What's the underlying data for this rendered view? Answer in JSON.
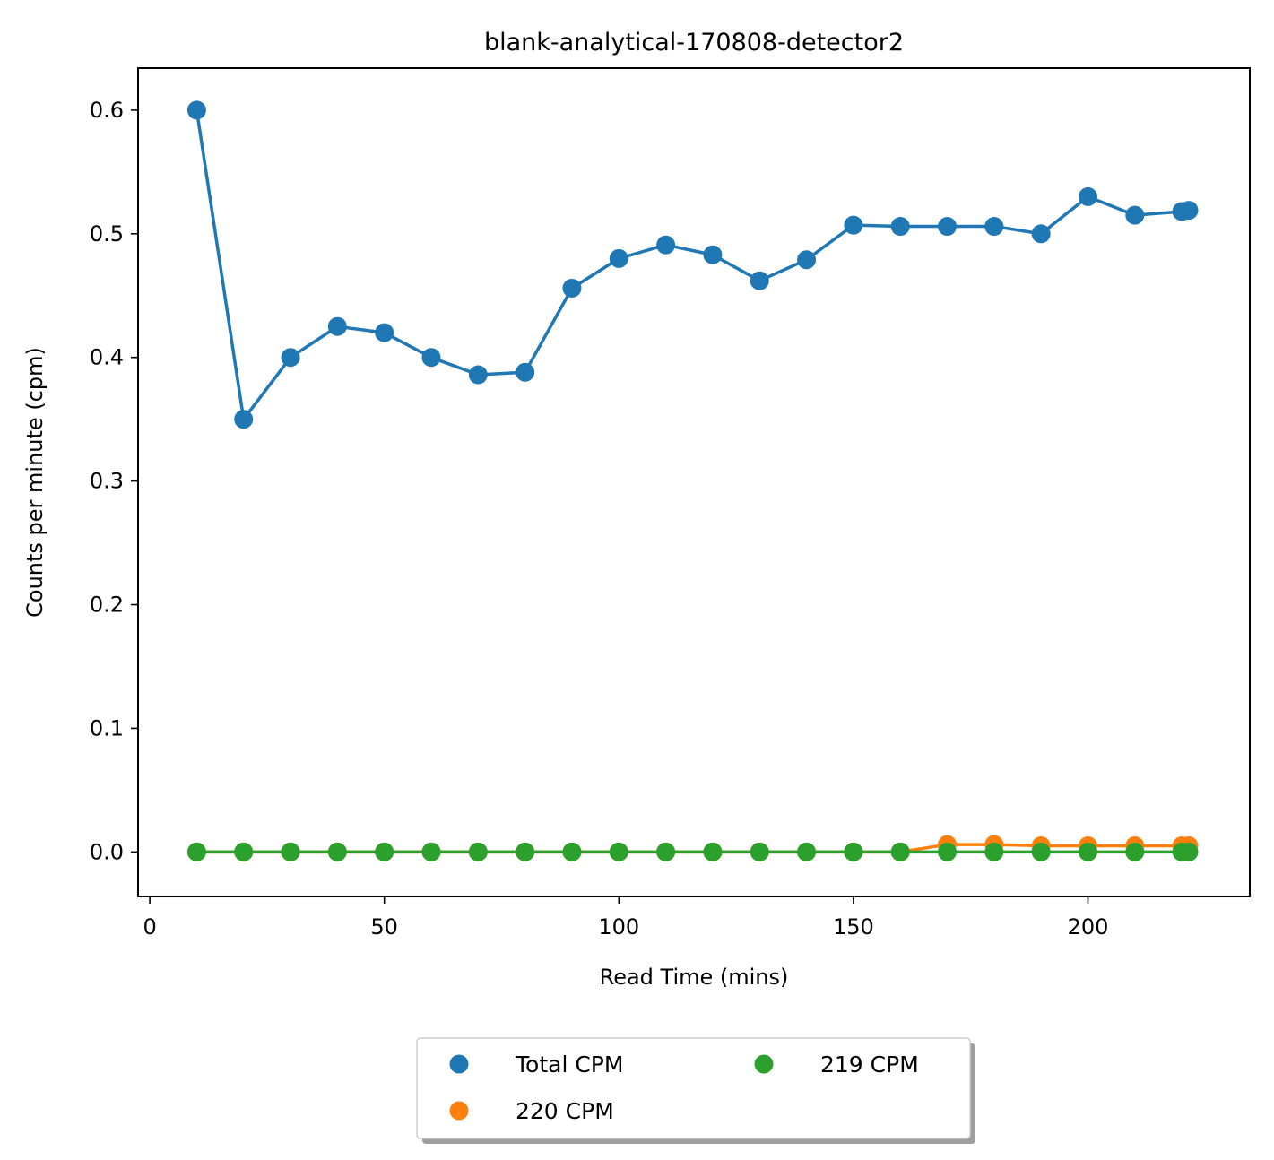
{
  "chart_data": {
    "type": "line",
    "title": "blank-analytical-170808-detector2",
    "xlabel": "Read Time (mins)",
    "ylabel": "Counts per minute (cpm)",
    "xlim": [
      -2.5,
      234.5
    ],
    "ylim": [
      -0.036,
      0.634
    ],
    "xticks": [
      0,
      50,
      100,
      150,
      200
    ],
    "yticks": [
      0.0,
      0.1,
      0.2,
      0.3,
      0.4,
      0.5,
      0.6
    ],
    "xtick_labels": [
      "0",
      "50",
      "100",
      "150",
      "200"
    ],
    "ytick_labels": [
      "0.0",
      "0.1",
      "0.2",
      "0.3",
      "0.4",
      "0.5",
      "0.6"
    ],
    "grid": false,
    "legend_position": "below-center",
    "series": [
      {
        "name": "Total CPM",
        "color": "#1f77b4",
        "x": [
          10,
          20,
          30,
          40,
          50,
          60,
          70,
          80,
          90,
          100,
          110,
          120,
          130,
          140,
          150,
          160,
          170,
          180,
          190,
          200,
          210,
          220,
          221.5
        ],
        "y": [
          0.6,
          0.35,
          0.4,
          0.425,
          0.42,
          0.4,
          0.386,
          0.388,
          0.456,
          0.48,
          0.491,
          0.483,
          0.462,
          0.479,
          0.507,
          0.506,
          0.506,
          0.506,
          0.5,
          0.53,
          0.515,
          0.518,
          0.519
        ]
      },
      {
        "name": "220 CPM",
        "color": "#ff7f0e",
        "x": [
          10,
          20,
          30,
          40,
          50,
          60,
          70,
          80,
          90,
          100,
          110,
          120,
          130,
          140,
          150,
          160,
          170,
          180,
          190,
          200,
          210,
          220,
          221.5
        ],
        "y": [
          0,
          0,
          0,
          0,
          0,
          0,
          0,
          0,
          0,
          0,
          0,
          0,
          0,
          0,
          0,
          0,
          0.006,
          0.006,
          0.005,
          0.005,
          0.005,
          0.005,
          0.005
        ]
      },
      {
        "name": "219 CPM",
        "color": "#2ca02c",
        "x": [
          10,
          20,
          30,
          40,
          50,
          60,
          70,
          80,
          90,
          100,
          110,
          120,
          130,
          140,
          150,
          160,
          170,
          180,
          190,
          200,
          210,
          220,
          221.5
        ],
        "y": [
          0,
          0,
          0,
          0,
          0,
          0,
          0,
          0,
          0,
          0,
          0,
          0,
          0,
          0,
          0,
          0,
          0,
          0,
          0,
          0,
          0,
          0,
          0
        ]
      }
    ]
  }
}
